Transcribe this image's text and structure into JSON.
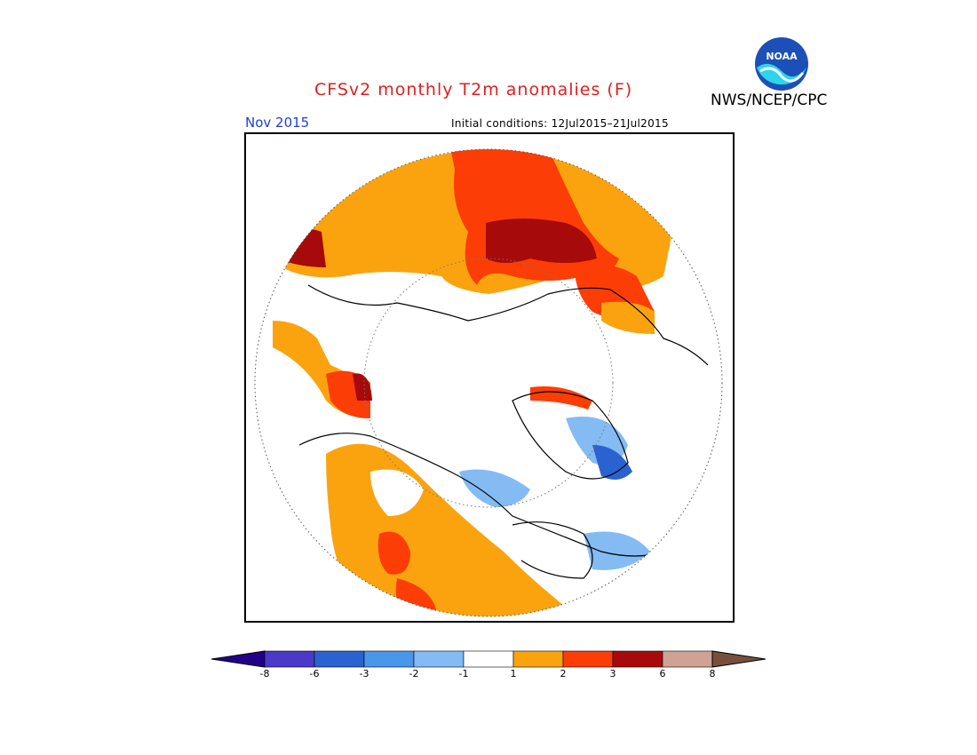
{
  "title": "CFSv2 monthly T2m anomalies (F)",
  "organization": "NWS/NCEP/CPC",
  "logo_text": "NOAA",
  "month": "Nov 2015",
  "initial_conditions": "Initial conditions: 12Jul2015–21Jul2015",
  "colorbar": {
    "colors": [
      "#22008a",
      "#4b3ac9",
      "#2a62d0",
      "#4a96ea",
      "#84bbf3",
      "#ffffff",
      "#fba30e",
      "#fc3d05",
      "#a60a0a",
      "#cfa294",
      "#7a4e3c"
    ],
    "ticks": [
      "-8",
      "-6",
      "-3",
      "-2",
      "-1",
      "1",
      "2",
      "3",
      "6",
      "8"
    ]
  }
}
